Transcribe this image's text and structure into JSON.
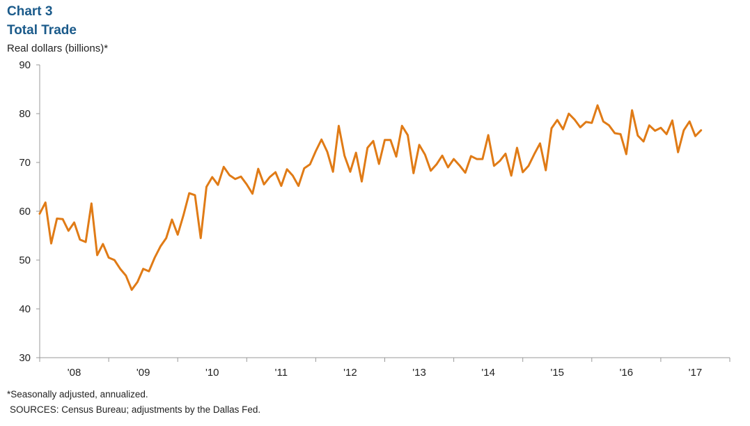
{
  "header": {
    "chart_number": "Chart 3",
    "title": "Total Trade",
    "y_unit": "Real dollars  (billions)*"
  },
  "footer": {
    "footnote": "*Seasonally adjusted, annualized.",
    "sources": "SOURCES:  Census Bureau; adjustments by the Dallas Fed."
  },
  "colors": {
    "series": "#e07b16",
    "axis": "#999999",
    "title": "#1a5a8a"
  },
  "chart_data": {
    "type": "line",
    "title": "Total Trade",
    "ylabel": "Real dollars  (billions)*",
    "xlabel": "",
    "ylim": [
      30,
      90
    ],
    "yticks": [
      30,
      40,
      50,
      60,
      70,
      80,
      90
    ],
    "x_start": "2008-01",
    "x_end": "2018-01",
    "frequency": "monthly",
    "grid": false,
    "xtick_labels": [
      "'08",
      "'09",
      "'10",
      "'11",
      "'12",
      "'13",
      "'14",
      "'15",
      "'16",
      "'17"
    ],
    "series": [
      {
        "values": [
          59.5,
          61.8,
          53.4,
          58.5,
          58.4,
          56.0,
          57.7,
          54.2,
          53.7,
          61.6,
          51.0,
          53.3,
          50.5,
          50.0,
          48.2,
          46.8,
          43.9,
          45.5,
          48.2,
          47.7,
          50.5,
          52.8,
          54.5,
          58.3,
          55.2,
          59.2,
          63.7,
          63.3,
          54.5,
          65.0,
          67.0,
          65.4,
          69.1,
          67.4,
          66.6,
          67.1,
          65.5,
          63.6,
          68.7,
          65.5,
          67.0,
          68.0,
          65.2,
          68.6,
          67.3,
          65.2,
          68.8,
          69.6,
          72.3,
          74.7,
          72.2,
          68.1,
          77.5,
          71.4,
          68.1,
          72.0,
          66.1,
          73.0,
          74.4,
          69.7,
          74.6,
          74.6,
          71.2,
          77.5,
          75.6,
          67.8,
          73.6,
          71.6,
          68.3,
          69.6,
          71.4,
          69.0,
          70.7,
          69.4,
          67.9,
          71.3,
          70.7,
          70.7,
          75.6,
          69.3,
          70.3,
          71.8,
          67.3,
          73.0,
          68.0,
          69.3,
          71.7,
          73.9,
          68.4,
          77.0,
          78.7,
          76.8,
          80.0,
          78.8,
          77.2,
          78.3,
          78.1,
          81.7,
          78.4,
          77.6,
          76.0,
          75.8,
          71.7,
          80.7,
          75.5,
          74.3,
          77.6,
          76.5,
          77.1,
          75.8,
          78.6,
          72.1,
          76.6,
          78.4,
          75.4,
          76.6
        ]
      }
    ]
  }
}
